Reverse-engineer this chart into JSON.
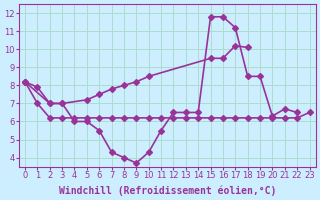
{
  "background_color": "#cceeff",
  "grid_color": "#aaddcc",
  "line_color": "#993399",
  "marker": "D",
  "markersize": 3,
  "linewidth": 1.2,
  "xlabel": "Windchill (Refroidissement éolien,°C)",
  "xlabel_fontsize": 7,
  "tick_fontsize": 6,
  "xlim": [
    -0.5,
    23.5
  ],
  "ylim": [
    3.5,
    12.5
  ],
  "yticks": [
    4,
    5,
    6,
    7,
    8,
    9,
    10,
    11,
    12
  ],
  "xticks": [
    0,
    1,
    2,
    3,
    4,
    5,
    6,
    7,
    8,
    9,
    10,
    11,
    12,
    13,
    14,
    15,
    16,
    17,
    18,
    19,
    20,
    21,
    22,
    23
  ],
  "series": [
    [
      8.2,
      7.9,
      7.0,
      7.0,
      6.0,
      6.0,
      5.5,
      4.3,
      4.0,
      3.7,
      4.3,
      5.5,
      6.5,
      6.5,
      6.5,
      11.8,
      11.8,
      11.2,
      8.5,
      8.5,
      6.3,
      6.7,
      6.5
    ],
    [
      8.2,
      7.0,
      7.0,
      7.2,
      7.5,
      7.8,
      8.0,
      8.2,
      8.5,
      9.5,
      9.5,
      10.2,
      10.1
    ],
    [
      8.2,
      7.0,
      6.2,
      6.2,
      6.2,
      6.2,
      6.2,
      6.2,
      6.2,
      6.2,
      6.2,
      6.2,
      6.2,
      6.2,
      6.2,
      6.2,
      6.2,
      6.2,
      6.2,
      6.2,
      6.2,
      6.2,
      6.2,
      6.5
    ]
  ],
  "series_x": [
    [
      0,
      1,
      2,
      3,
      4,
      5,
      6,
      7,
      8,
      9,
      10,
      11,
      12,
      13,
      14,
      15,
      16,
      17,
      18,
      19,
      20,
      21,
      22
    ],
    [
      0,
      2,
      3,
      5,
      6,
      7,
      8,
      9,
      10,
      15,
      16,
      17,
      18
    ],
    [
      0,
      1,
      2,
      3,
      4,
      5,
      6,
      7,
      8,
      9,
      10,
      11,
      12,
      13,
      14,
      15,
      16,
      17,
      18,
      19,
      20,
      21,
      22,
      23
    ]
  ]
}
